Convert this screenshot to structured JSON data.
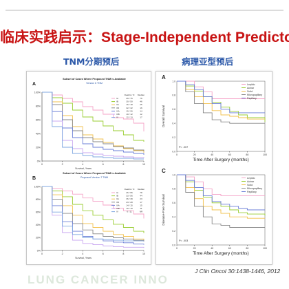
{
  "title": {
    "cn": "临床实践启示：",
    "en": "Stage-Independent Predictor"
  },
  "headings": {
    "left": "TNM分期预后",
    "right": "病理亚型预后"
  },
  "citation": "J Clin Oncol 30:1438-1446, 2012",
  "watermark": "LUNG CANCER INNO",
  "colors": {
    "title_red": "#c81414",
    "heading_blue": "#2a57a8",
    "series": [
      "#f5a3c7",
      "#9acd32",
      "#f2c14e",
      "#8a8a8a",
      "#6b7fd7",
      "#c9a7f0",
      "#7fa7e0"
    ]
  },
  "chart_data": [
    {
      "type": "line",
      "panel_letter": "A",
      "title": "Subset of Cases Where Proposed TNM is Available",
      "subtitle": "Version 6 TNM",
      "xlabel": "Survival, Years",
      "x_ticks": [
        "0",
        "2",
        "4",
        "6",
        "8",
        "10"
      ],
      "xlim": [
        0,
        10
      ],
      "y_ticks": [
        "0%",
        "20%",
        "40%",
        "60%",
        "80%",
        "100%"
      ],
      "ylim": [
        0,
        100
      ],
      "legend": {
        "headers": [
          "",
          "Deaths / N",
          "Median"
        ],
        "rows": [
          {
            "stage": "IA",
            "deaths_n": "29 / 76",
            "median": "76"
          },
          {
            "stage": "IB",
            "deaths_n": "30 / 50",
            "median": "46"
          },
          {
            "stage": "IIA",
            "deaths_n": "16 / 18",
            "median": "25"
          },
          {
            "stage": "IIB",
            "deaths_n": "32 / 32",
            "median": "16"
          },
          {
            "stage": "IIIA",
            "deaths_n": "19 / 26",
            "median": "14"
          },
          {
            "stage": "IIIB",
            "deaths_n": "10 / 12",
            "median": "12"
          },
          {
            "stage": "IV",
            "deaths_n": "12 / 13",
            "median": "17"
          }
        ]
      },
      "series": [
        {
          "name": "IA",
          "x": [
            0,
            1,
            2,
            3,
            4,
            5,
            6,
            7,
            8,
            9,
            10
          ],
          "values": [
            100,
            96,
            91,
            86,
            79,
            74,
            68,
            63,
            61,
            55,
            43
          ]
        },
        {
          "name": "IB",
          "x": [
            0,
            1,
            2,
            3,
            4,
            5,
            6,
            7,
            8,
            9,
            10
          ],
          "values": [
            100,
            92,
            84,
            74,
            64,
            58,
            51,
            44,
            38,
            30,
            28
          ]
        },
        {
          "name": "IIA",
          "x": [
            0,
            1,
            2,
            3,
            4,
            5,
            6,
            7,
            8,
            9,
            10
          ],
          "values": [
            100,
            86,
            66,
            50,
            38,
            32,
            27,
            22,
            18,
            15,
            12
          ]
        },
        {
          "name": "IIB",
          "x": [
            0,
            1,
            2,
            3,
            4,
            5,
            6,
            7,
            8,
            9,
            10
          ],
          "values": [
            100,
            82,
            60,
            44,
            34,
            28,
            25,
            21,
            19,
            16,
            14
          ]
        },
        {
          "name": "IIIA",
          "x": [
            0,
            1,
            2,
            3,
            4,
            5,
            6,
            7,
            8,
            9,
            10
          ],
          "values": [
            100,
            72,
            48,
            34,
            25,
            20,
            17,
            15,
            13,
            11,
            9
          ]
        },
        {
          "name": "IIIB",
          "x": [
            0,
            1,
            2,
            3,
            4,
            5,
            6,
            7,
            8,
            9,
            10
          ],
          "values": [
            100,
            58,
            30,
            18,
            12,
            10,
            8,
            7,
            6,
            5,
            4
          ]
        },
        {
          "name": "IV",
          "x": [
            0,
            1,
            2,
            3,
            4,
            5,
            6,
            7,
            8,
            9,
            10
          ],
          "values": [
            100,
            50,
            20,
            11,
            8,
            6,
            5,
            4,
            4,
            3,
            3
          ]
        }
      ]
    },
    {
      "type": "line",
      "panel_letter": "B",
      "title": "Subset of Cases Where Proposed TNM is Available",
      "subtitle": "Proposed Version 7 TNM",
      "xlabel": "Survival, Years",
      "x_ticks": [
        "0",
        "2",
        "4",
        "6",
        "8",
        "10"
      ],
      "xlim": [
        0,
        10
      ],
      "y_ticks": [
        "0%",
        "20%",
        "40%",
        "60%",
        "80%",
        "100%"
      ],
      "ylim": [
        0,
        100
      ],
      "legend": {
        "headers": [
          "",
          "Deaths / N",
          "Median"
        ],
        "rows": [
          {
            "stage": "IA",
            "deaths_n": "26 / 66",
            "median": "78"
          },
          {
            "stage": "IB",
            "deaths_n": "33 / 56",
            "median": "44"
          },
          {
            "stage": "IIA",
            "deaths_n": "36 / 39",
            "median": "23"
          },
          {
            "stage": "IIB",
            "deaths_n": "23 / 28",
            "median": "17"
          },
          {
            "stage": "IIIA",
            "deaths_n": "14 / 15",
            "median": "15"
          },
          {
            "stage": "IIIB",
            "deaths_n": "10 / 10",
            "median": "11"
          },
          {
            "stage": "IV",
            "deaths_n": "6 / 11",
            "median": "NR"
          }
        ]
      },
      "series": [
        {
          "name": "IA",
          "x": [
            0,
            1,
            2,
            3,
            4,
            5,
            6,
            7,
            8,
            9,
            10
          ],
          "values": [
            100,
            97,
            93,
            88,
            82,
            77,
            71,
            66,
            62,
            57,
            50
          ]
        },
        {
          "name": "IB",
          "x": [
            0,
            1,
            2,
            3,
            4,
            5,
            6,
            7,
            8,
            9,
            10
          ],
          "values": [
            100,
            93,
            84,
            72,
            62,
            55,
            48,
            41,
            36,
            30,
            27
          ]
        },
        {
          "name": "IIA",
          "x": [
            0,
            1,
            2,
            3,
            4,
            5,
            6,
            7,
            8,
            9,
            10
          ],
          "values": [
            100,
            87,
            70,
            55,
            42,
            36,
            30,
            25,
            22,
            18,
            16
          ]
        },
        {
          "name": "IIB",
          "x": [
            0,
            1,
            2,
            3,
            4,
            5,
            6,
            7,
            8,
            9,
            10
          ],
          "values": [
            100,
            80,
            58,
            42,
            32,
            26,
            22,
            20,
            18,
            16,
            14
          ]
        },
        {
          "name": "IIIA",
          "x": [
            0,
            1,
            2,
            3,
            4,
            5,
            6,
            7,
            8,
            9,
            10
          ],
          "values": [
            100,
            70,
            45,
            30,
            22,
            18,
            15,
            13,
            12,
            10,
            9
          ]
        },
        {
          "name": "IIIB",
          "x": [
            0,
            1,
            2,
            3,
            4,
            5,
            6,
            7,
            8,
            9,
            10
          ],
          "values": [
            100,
            55,
            28,
            16,
            11,
            9,
            7,
            6,
            5,
            5,
            4
          ]
        },
        {
          "name": "IV",
          "x": [
            0,
            1,
            2,
            3,
            4,
            5,
            6,
            7,
            8,
            9,
            10
          ],
          "values": [
            100,
            60,
            38,
            25,
            20,
            18,
            17,
            16,
            15,
            15,
            15
          ]
        }
      ]
    },
    {
      "type": "line",
      "panel_letter": "A",
      "ylabel": "Overall Survival",
      "xlabel": "Time After Surgery (months)",
      "x_ticks": [
        "0",
        "20",
        "40",
        "60",
        "80",
        "100"
      ],
      "xlim": [
        0,
        100
      ],
      "y_ticks": [
        "0.0",
        "0.2",
        "0.4",
        "0.6",
        "0.8",
        "1.0"
      ],
      "ylim": [
        0,
        1
      ],
      "p_value": "P= .007",
      "legend_items": [
        "Lepidic",
        "Acinar",
        "Solid",
        "Micropapillary",
        "Papillary"
      ],
      "series": [
        {
          "name": "Lepidic",
          "x": [
            0,
            10,
            20,
            30,
            40,
            50,
            60,
            70,
            80,
            100
          ],
          "values": [
            1.0,
            1.0,
            0.92,
            0.85,
            0.75,
            0.75,
            0.75,
            0.75,
            0.75,
            0.75
          ]
        },
        {
          "name": "Acinar",
          "x": [
            0,
            10,
            20,
            30,
            40,
            50,
            60,
            70,
            80,
            100
          ],
          "values": [
            1.0,
            0.93,
            0.86,
            0.78,
            0.7,
            0.63,
            0.57,
            0.52,
            0.48,
            0.42
          ]
        },
        {
          "name": "Solid",
          "x": [
            0,
            10,
            20,
            30,
            40,
            50,
            60,
            70,
            80,
            100
          ],
          "values": [
            1.0,
            0.88,
            0.78,
            0.68,
            0.58,
            0.52,
            0.5,
            0.48,
            0.46,
            0.46
          ]
        },
        {
          "name": "Micropapillary",
          "x": [
            0,
            10,
            20,
            30,
            40,
            50,
            60,
            70,
            80,
            100
          ],
          "values": [
            1.0,
            0.85,
            0.68,
            0.55,
            0.45,
            0.42,
            0.4,
            0.4,
            0.4,
            0.4
          ]
        },
        {
          "name": "Papillary",
          "x": [
            0,
            10,
            20,
            30,
            40,
            50,
            60,
            70,
            80,
            100
          ],
          "values": [
            1.0,
            0.95,
            0.88,
            0.78,
            0.68,
            0.6,
            0.55,
            0.55,
            0.55,
            0.55
          ]
        }
      ]
    },
    {
      "type": "line",
      "panel_letter": "C",
      "ylabel": "Disease-Free Survival",
      "xlabel": "Time After Surgery (months)",
      "x_ticks": [
        "0",
        "20",
        "40",
        "60",
        "80",
        "100"
      ],
      "xlim": [
        0,
        100
      ],
      "y_ticks": [
        "0.0",
        "0.2",
        "0.4",
        "0.6",
        "0.8",
        "1.0"
      ],
      "ylim": [
        0,
        1
      ],
      "p_value": "P= .003",
      "legend_items": [
        "Lepidic",
        "Acinar",
        "Solid",
        "Micropapillary",
        "Papillary"
      ],
      "series": [
        {
          "name": "Lepidic",
          "x": [
            0,
            10,
            20,
            30,
            40,
            50,
            60,
            70,
            80,
            100
          ],
          "values": [
            1.0,
            0.97,
            0.9,
            0.8,
            0.72,
            0.7,
            0.7,
            0.7,
            0.7,
            0.7
          ]
        },
        {
          "name": "Acinar",
          "x": [
            0,
            10,
            20,
            30,
            40,
            50,
            60,
            70,
            80,
            100
          ],
          "values": [
            1.0,
            0.9,
            0.78,
            0.68,
            0.6,
            0.55,
            0.5,
            0.46,
            0.44,
            0.42
          ]
        },
        {
          "name": "Solid",
          "x": [
            0,
            10,
            20,
            30,
            40,
            50,
            60,
            70,
            80,
            100
          ],
          "values": [
            1.0,
            0.82,
            0.66,
            0.55,
            0.5,
            0.45,
            0.4,
            0.4,
            0.38,
            0.38
          ]
        },
        {
          "name": "Micropapillary",
          "x": [
            0,
            10,
            20,
            30,
            40,
            50,
            60,
            70,
            80,
            100
          ],
          "values": [
            1.0,
            0.75,
            0.55,
            0.4,
            0.3,
            0.28,
            0.25,
            0.25,
            0.25,
            0.25
          ]
        },
        {
          "name": "Papillary",
          "x": [
            0,
            10,
            20,
            30,
            40,
            50,
            60,
            70,
            80,
            100
          ],
          "values": [
            1.0,
            0.92,
            0.82,
            0.7,
            0.62,
            0.58,
            0.55,
            0.52,
            0.5,
            0.5
          ]
        }
      ]
    }
  ]
}
